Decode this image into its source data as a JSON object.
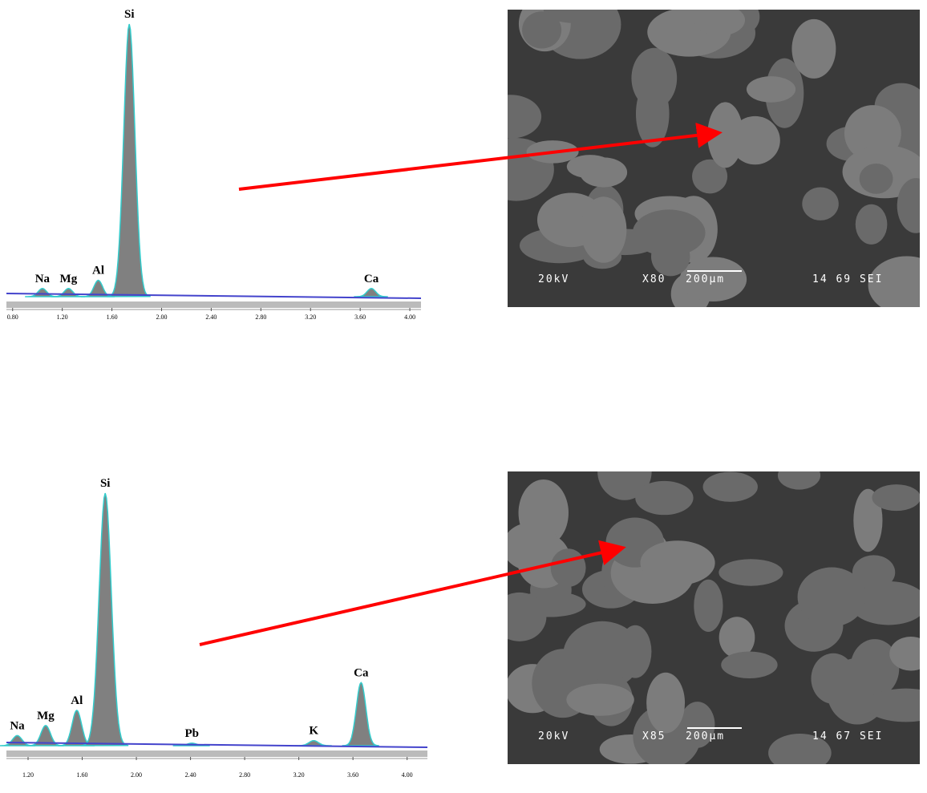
{
  "chart_data": [
    {
      "type": "spectrum",
      "xlim": [
        0.75,
        4.09
      ],
      "ylim": [
        0,
        100
      ],
      "xticks": [
        {
          "value": 0.8,
          "label": "0.80"
        },
        {
          "value": 1.2,
          "label": "1.20"
        },
        {
          "value": 1.6,
          "label": "1.60"
        },
        {
          "value": 2.0,
          "label": "2.00"
        },
        {
          "value": 2.4,
          "label": "2.40"
        },
        {
          "value": 2.8,
          "label": "2.80"
        },
        {
          "value": 3.2,
          "label": "3.20"
        },
        {
          "value": 3.6,
          "label": "3.60"
        },
        {
          "value": 4.0,
          "label": "4.00"
        }
      ],
      "peaks": [
        {
          "label": "Na",
          "energy": 1.04,
          "height": 3
        },
        {
          "label": "Mg",
          "energy": 1.25,
          "height": 3
        },
        {
          "label": "Al",
          "energy": 1.49,
          "height": 6
        },
        {
          "label": "Si",
          "energy": 1.74,
          "height": 100
        },
        {
          "label": "Ca",
          "energy": 3.69,
          "height": 3
        }
      ]
    },
    {
      "type": "spectrum",
      "xlim": [
        1.04,
        4.15
      ],
      "ylim": [
        0,
        100
      ],
      "xticks": [
        {
          "value": 1.2,
          "label": "1.20"
        },
        {
          "value": 1.6,
          "label": "1.60"
        },
        {
          "value": 2.0,
          "label": "2.00"
        },
        {
          "value": 2.4,
          "label": "2.40"
        },
        {
          "value": 2.8,
          "label": "2.80"
        },
        {
          "value": 3.2,
          "label": "3.20"
        },
        {
          "value": 3.6,
          "label": "3.60"
        },
        {
          "value": 4.0,
          "label": "4.00"
        }
      ],
      "peaks": [
        {
          "label": "Na",
          "energy": 1.12,
          "height": 4
        },
        {
          "label": "Mg",
          "energy": 1.33,
          "height": 8
        },
        {
          "label": "Al",
          "energy": 1.56,
          "height": 14
        },
        {
          "label": "Si",
          "energy": 1.77,
          "height": 100
        },
        {
          "label": "Pb",
          "energy": 2.41,
          "height": 1
        },
        {
          "label": "K",
          "energy": 3.31,
          "height": 2
        },
        {
          "label": "Ca",
          "energy": 3.66,
          "height": 25
        }
      ]
    }
  ],
  "micrographs": [
    {
      "voltage": "20kV",
      "magnification": "X80",
      "scale": "200μm",
      "code": "14 69 SEI"
    },
    {
      "voltage": "20kV",
      "magnification": "X85",
      "scale": "200μm",
      "code": "14 67 SEI"
    }
  ]
}
